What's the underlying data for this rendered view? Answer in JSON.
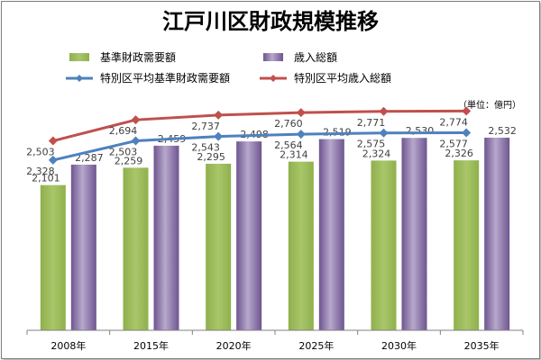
{
  "chart_data": {
    "type": "bar",
    "title": "江戸川区財政規模推移",
    "unit": "（単位：億円）",
    "categories": [
      "2008年",
      "2015年",
      "2020年",
      "2025年",
      "2030年",
      "2035年"
    ],
    "series": [
      {
        "name": "基準財政需要額",
        "kind": "bar",
        "color": "#9bbb59",
        "values": [
          2101,
          2259,
          2295,
          2314,
          2324,
          2326
        ]
      },
      {
        "name": "歳入総額",
        "kind": "bar",
        "color": "#8064a2",
        "values": [
          2287,
          2459,
          2498,
          2519,
          2530,
          2532
        ]
      },
      {
        "name": "特別区平均基準財政需要額",
        "kind": "line",
        "color": "#4f81bd",
        "values": [
          2328,
          2503,
          2543,
          2564,
          2575,
          2577
        ]
      },
      {
        "name": "特別区平均歳入総額",
        "kind": "line",
        "color": "#c0504d",
        "values": [
          2503,
          2694,
          2737,
          2760,
          2771,
          2774
        ]
      }
    ],
    "ylim": [
      0,
      3000
    ],
    "grid": false,
    "legend_position": "top"
  }
}
